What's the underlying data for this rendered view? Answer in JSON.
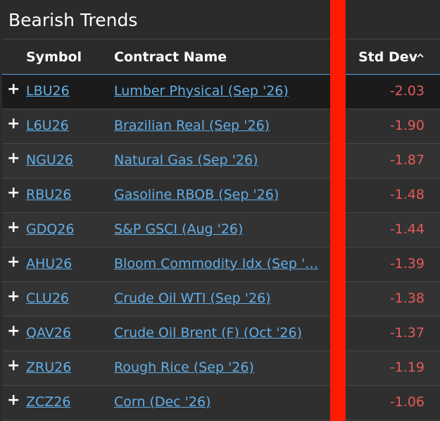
{
  "header": {
    "title": "Bearish Trends"
  },
  "table": {
    "columns": [
      "Symbol",
      "Contract Name",
      "Std Dev"
    ],
    "rows": [
      [
        "LBU26",
        "Lumber Physical (Sep '26)",
        "-2.03"
      ],
      [
        "L6U26",
        "Brazilian Real (Sep '26)",
        "-1.90"
      ],
      [
        "NGU26",
        "Natural Gas (Sep '26)",
        "-1.87"
      ],
      [
        "RBU26",
        "Gasoline RBOB (Sep '26)",
        "-1.48"
      ],
      [
        "GDQ26",
        "S&P GSCI (Aug '26)",
        "-1.44"
      ],
      [
        "AHU26",
        "Bloom Commodity Idx (Sep '…",
        "-1.39"
      ],
      [
        "CLU26",
        "Crude Oil WTI (Sep '26)",
        "-1.38"
      ],
      [
        "QAV26",
        "Crude Oil Brent (F) (Oct '26)",
        "-1.37"
      ],
      [
        "ZRU26",
        "Rough Rice (Sep '26)",
        "-1.19"
      ],
      [
        "ZCZ26",
        "Corn (Dec '26)",
        "-1.06"
      ]
    ]
  }
}
